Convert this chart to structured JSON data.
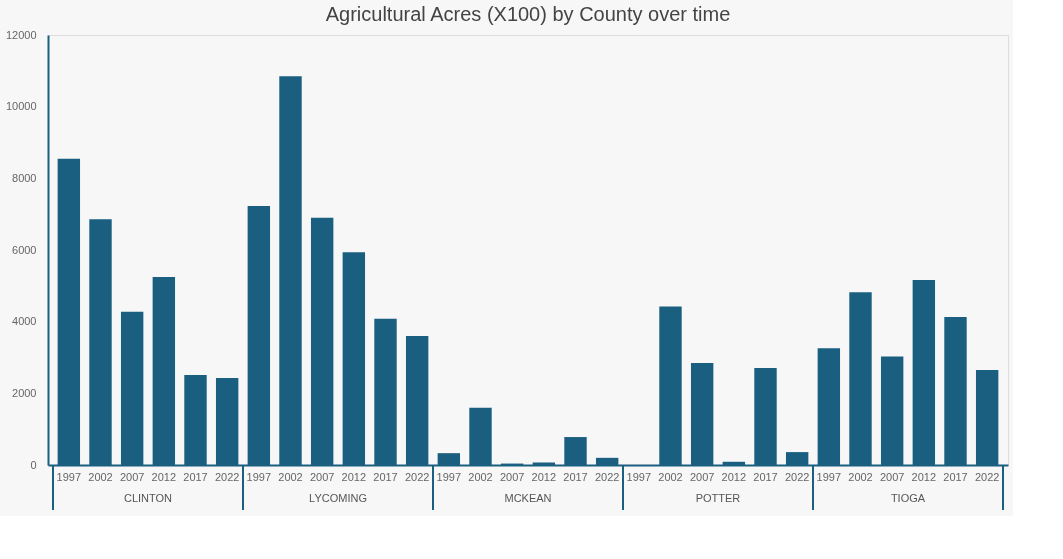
{
  "chart_data": {
    "type": "bar",
    "title": "Agricultural Acres (X100) by County over time",
    "categories": [
      "1997",
      "2002",
      "2007",
      "2012",
      "2017",
      "2022",
      "1997",
      "2002",
      "2007",
      "2012",
      "2017",
      "2022",
      "1997",
      "2002",
      "2007",
      "2012",
      "2017",
      "2022",
      "1997",
      "2002",
      "2007",
      "2012",
      "2017",
      "2022",
      "1997",
      "2002",
      "2007",
      "2012",
      "2017",
      "2022"
    ],
    "values": [
      8550,
      6860,
      4280,
      5250,
      2510,
      2430,
      7230,
      10850,
      6900,
      5940,
      4080,
      3600,
      330,
      1600,
      40,
      70,
      780,
      200,
      0,
      4420,
      2850,
      90,
      2710,
      360,
      3260,
      4820,
      3030,
      5160,
      4130,
      2650
    ],
    "color": "#1a5e80",
    "ylim": [
      0,
      12000
    ],
    "yticks": [
      0,
      2000,
      4000,
      6000,
      8000,
      10000,
      12000
    ],
    "grid": false,
    "annotations": [
      "CLINTON",
      "LYCOMING",
      "MCKEAN",
      "POTTER",
      "TIOGA"
    ]
  }
}
